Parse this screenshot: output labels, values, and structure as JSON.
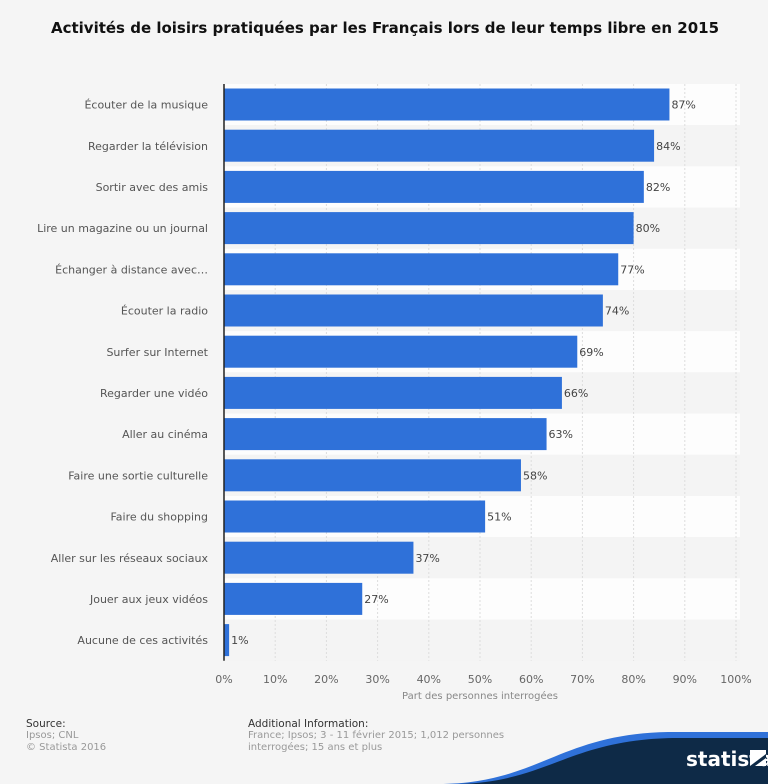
{
  "chart_data": {
    "type": "bar",
    "orientation": "horizontal",
    "title": "Activités de loisirs pratiquées par les Français lors de leur temps libre en 2015",
    "xlabel": "Part des personnes interrogées",
    "ylabel": "",
    "xlim": [
      0,
      100
    ],
    "ticks": [
      "0%",
      "10%",
      "20%",
      "30%",
      "40%",
      "50%",
      "60%",
      "70%",
      "80%",
      "90%",
      "100%"
    ],
    "grid": true,
    "bar_color": "#2f71d9",
    "categories": [
      "Écouter de la musique",
      "Regarder la télévision",
      "Sortir avec des amis",
      "Lire un magazine ou un journal",
      "Échanger à distance avec…",
      "Écouter la radio",
      "Surfer sur Internet",
      "Regarder une vidéo",
      "Aller au cinéma",
      "Faire une sortie culturelle",
      "Faire du shopping",
      "Aller sur les réseaux sociaux",
      "Jouer aux jeux vidéos",
      "Aucune de ces activités"
    ],
    "values": [
      87,
      84,
      82,
      80,
      77,
      74,
      69,
      66,
      63,
      58,
      51,
      37,
      27,
      1
    ],
    "value_labels": [
      "87%",
      "84%",
      "82%",
      "80%",
      "77%",
      "74%",
      "69%",
      "66%",
      "63%",
      "58%",
      "51%",
      "37%",
      "27%",
      "1%"
    ]
  },
  "footer": {
    "source_label": "Source:",
    "source_lines": [
      "Ipsos; CNL",
      "© Statista 2016"
    ],
    "info_label": "Additional Information:",
    "info_lines": [
      "France; Ipsos; 3 - 11 février 2015; 1,012 personnes interrogées; 15 ans et",
      "plus"
    ],
    "brand": "statista"
  }
}
